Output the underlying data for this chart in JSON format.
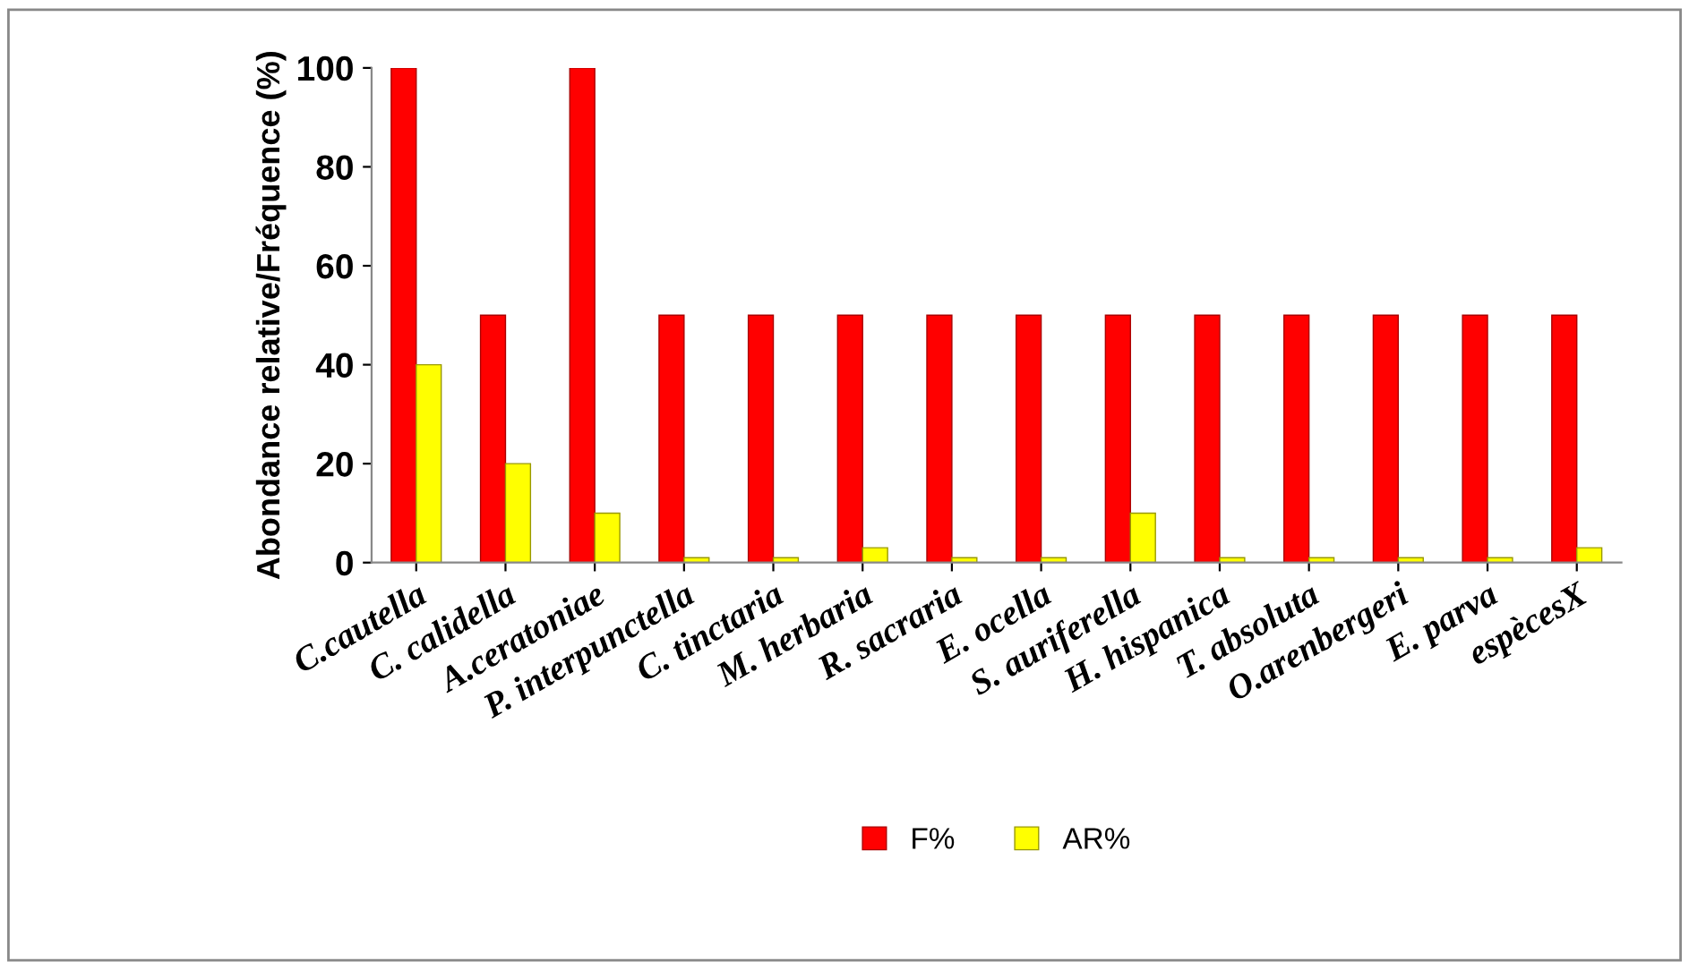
{
  "chart_data": {
    "type": "bar",
    "ylabel": "Abondance relative/Fréquence (%)",
    "categories": [
      "C.cautella",
      "C. calidella",
      "A.ceratoniae",
      "P. interpunctella",
      "C. tinctaria",
      "M. herbaria",
      "R. sacraria",
      "E. ocella",
      "S. auriferella",
      "H. hispanica",
      "T. absoluta",
      "O.arenbergeri",
      "E. parva",
      "espècesX"
    ],
    "series": [
      {
        "name": "F%",
        "color": "#ff0000",
        "values": [
          100,
          50,
          100,
          50,
          50,
          50,
          50,
          50,
          50,
          50,
          50,
          50,
          50,
          50
        ]
      },
      {
        "name": "AR%",
        "color": "#ffff00",
        "values": [
          40,
          20,
          10,
          1,
          1,
          3,
          1,
          1,
          10,
          1,
          1,
          1,
          1,
          3
        ]
      }
    ],
    "ylim": [
      0,
      100
    ],
    "yticks": [
      0,
      20,
      40,
      60,
      80,
      100
    ],
    "grid": false,
    "legend": "bottom"
  }
}
